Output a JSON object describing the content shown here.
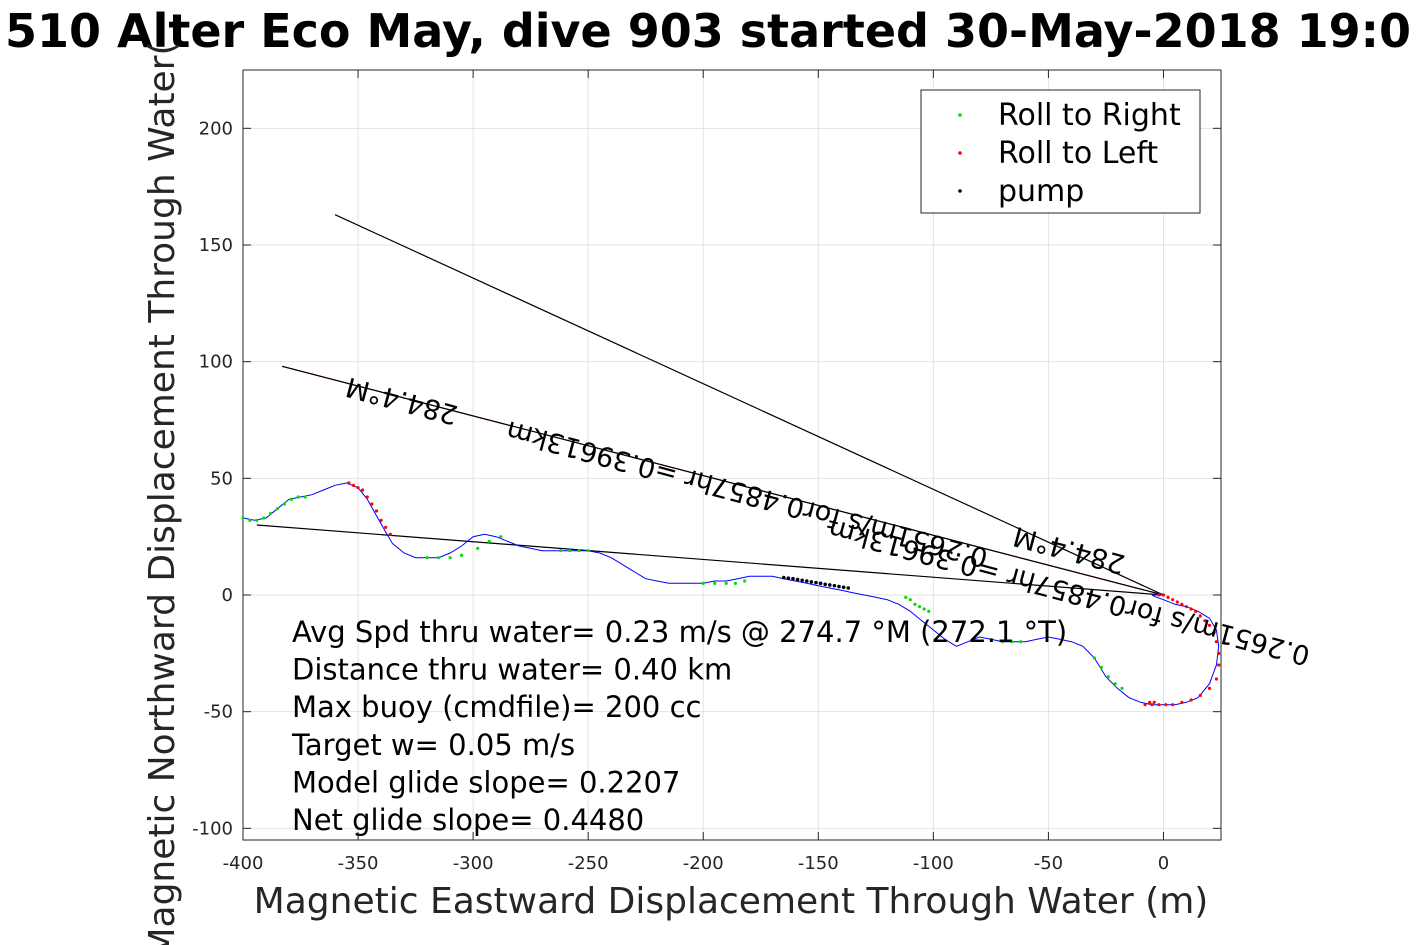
{
  "chart_data": {
    "type": "scatter",
    "title": "510 Alter Eco May, dive 903 started 30-May-2018 19:0",
    "xlabel": "Magnetic Eastward Displacement Through Water (m)",
    "ylabel": "Magnetic Northward Displacement Through Water(",
    "xlim": [
      -400,
      25
    ],
    "ylim": [
      -105,
      225
    ],
    "grid": true,
    "xticks": [
      -400,
      -350,
      -300,
      -250,
      -200,
      -150,
      -100,
      -50,
      0
    ],
    "xtick_labels": [
      "-400",
      "-350",
      "-300",
      "-250",
      "-200",
      "-150",
      "-100",
      "-50",
      "0"
    ],
    "yticks": [
      -100,
      -50,
      0,
      50,
      100,
      150,
      200
    ],
    "ytick_labels": [
      "-100",
      "-50",
      "0",
      "50",
      "100",
      "150",
      "200"
    ],
    "legend": {
      "placement": "top-right",
      "entries": [
        {
          "label": "Roll to Right",
          "color": "#00dd00"
        },
        {
          "label": "Roll to Left",
          "color": "#ff0000"
        },
        {
          "label": "pump",
          "color": "#000000"
        }
      ]
    },
    "track": {
      "color": "#0000ff",
      "x": [
        -400,
        -395,
        -390,
        -385,
        -380,
        -375,
        -370,
        -365,
        -360,
        -355,
        -350,
        -346,
        -342,
        -338,
        -335,
        -330,
        -325,
        -320,
        -315,
        -310,
        -305,
        -300,
        -295,
        -290,
        -285,
        -280,
        -275,
        -270,
        -265,
        -260,
        -255,
        -250,
        -245,
        -240,
        -235,
        -230,
        -225,
        -220,
        -215,
        -210,
        -205,
        -200,
        -195,
        -190,
        -185,
        -180,
        -175,
        -170,
        -165,
        -160,
        -155,
        -150,
        -145,
        -140,
        -135,
        -130,
        -125,
        -120,
        -115,
        -110,
        -105,
        -100,
        -95,
        -90,
        -85,
        -80,
        -75,
        -70,
        -65,
        -60,
        -55,
        -50,
        -45,
        -40,
        -35,
        -30,
        -25,
        -20,
        -15,
        -10,
        -5,
        0,
        5,
        10,
        15,
        20,
        23,
        24,
        23,
        20,
        15,
        10,
        5,
        0,
        -3,
        -5,
        -4,
        -2,
        0
      ],
      "y": [
        33,
        32,
        33,
        37,
        41,
        42,
        43,
        45,
        47,
        48,
        46,
        41,
        34,
        27,
        22,
        18,
        16,
        16,
        16,
        18,
        21,
        25,
        26,
        25,
        23,
        21,
        20,
        19,
        19,
        19,
        19,
        19,
        18,
        16,
        13,
        10,
        7,
        6,
        5,
        5,
        5,
        5,
        6,
        6,
        7,
        8,
        8,
        8,
        7,
        6,
        5,
        4,
        3,
        2,
        1,
        0,
        -1,
        -2,
        -4,
        -7,
        -11,
        -15,
        -19,
        -22,
        -20,
        -18,
        -19,
        -20,
        -20,
        -20,
        -19,
        -18,
        -19,
        -20,
        -22,
        -27,
        -35,
        -40,
        -44,
        -46,
        -47,
        -47,
        -47,
        -46,
        -44,
        -38,
        -30,
        -22,
        -15,
        -10,
        -7,
        -5,
        -4,
        -2,
        -1,
        0,
        0,
        0,
        0
      ]
    },
    "roll_right_points": {
      "color": "#00dd00",
      "x": [
        -400,
        -397,
        -394,
        -391,
        -388,
        -385,
        -382,
        -379,
        -376,
        -373,
        -320,
        -315,
        -310,
        -305,
        -298,
        -293,
        -288,
        -262,
        -258,
        -254,
        -250,
        -200,
        -195,
        -190,
        -186,
        -182,
        -112,
        -110,
        -108,
        -106,
        -104,
        -102,
        -70,
        -66,
        -62,
        -30,
        -27,
        -24,
        -21,
        -18
      ],
      "y": [
        33,
        32,
        32,
        33,
        35,
        37,
        39,
        41,
        42,
        42,
        16,
        16,
        16,
        17,
        20,
        23,
        25,
        19,
        19,
        19,
        19,
        5,
        5,
        5,
        5,
        6,
        -1,
        -2,
        -4,
        -5,
        -6,
        -7,
        -20,
        -20,
        -20,
        -27,
        -31,
        -35,
        -38,
        -40
      ]
    },
    "roll_left_points": {
      "color": "#ff0000",
      "x": [
        -354,
        -352,
        -350,
        -348,
        -346,
        -344,
        -342,
        -340,
        -338,
        -336,
        -5,
        -2,
        1,
        4,
        8,
        12,
        16,
        20,
        23,
        24,
        24,
        23,
        22,
        20,
        18,
        16,
        14,
        12,
        10,
        8,
        6,
        4,
        2,
        0,
        -2,
        -4,
        -6,
        -8
      ],
      "y": [
        48,
        47,
        46,
        45,
        42,
        39,
        36,
        32,
        29,
        26,
        -47,
        -47,
        -47,
        -47,
        -46,
        -45,
        -43,
        -40,
        -36,
        -30,
        -25,
        -20,
        -16,
        -13,
        -11,
        -9,
        -7,
        -6,
        -5,
        -4,
        -3,
        -2,
        -1,
        0,
        0,
        -46,
        -46,
        -47
      ]
    },
    "pump_points": {
      "color": "#000014",
      "x": [
        -165,
        -163,
        -161,
        -159,
        -157,
        -155,
        -153,
        -151,
        -149,
        -147,
        -145,
        -143,
        -141,
        -139,
        -137
      ],
      "y": [
        7.5,
        7.2,
        7.0,
        6.6,
        6.3,
        6.0,
        5.6,
        5.3,
        5.0,
        4.6,
        4.3,
        4.0,
        3.6,
        3.3,
        3.0
      ]
    },
    "lines": [
      {
        "name": "heading-line-upper",
        "x": [
          -360,
          0
        ],
        "y": [
          163,
          0
        ],
        "color": "#000000"
      },
      {
        "name": "heading-line-magenta",
        "x": [
          -383,
          0
        ],
        "y": [
          98,
          0
        ],
        "color": "#ff00ff"
      },
      {
        "name": "heading-line-black",
        "x": [
          -383,
          0
        ],
        "y": [
          98,
          0
        ],
        "color": "#000000"
      },
      {
        "name": "heading-line-lower",
        "x": [
          -394,
          0
        ],
        "y": [
          30,
          0
        ],
        "color": "#000000"
      }
    ],
    "rotated_labels": [
      {
        "text": "284.4°M",
        "x": -330,
        "y": 87,
        "angle": 195
      },
      {
        "text": "0.2651m/s for0.4857hr =0.39613km",
        "x": -180,
        "y": 47,
        "angle": 195
      },
      {
        "text": "284.4°M",
        "x": -40,
        "y": 23,
        "angle": 195
      },
      {
        "text": "0.2651m/s for0.4857hr =0.39613km",
        "x": -40,
        "y": 5,
        "angle": 195
      }
    ],
    "annotations": [
      "Avg Spd thru water=  0.23 m/s @ 274.7 °M (272.1 °T)",
      "Distance thru water=  0.40 km",
      "Max buoy (cmdfile)= 200 cc",
      "Target w= 0.05 m/s",
      "Model glide slope= 0.2207",
      "Net glide slope= 0.4480"
    ]
  }
}
